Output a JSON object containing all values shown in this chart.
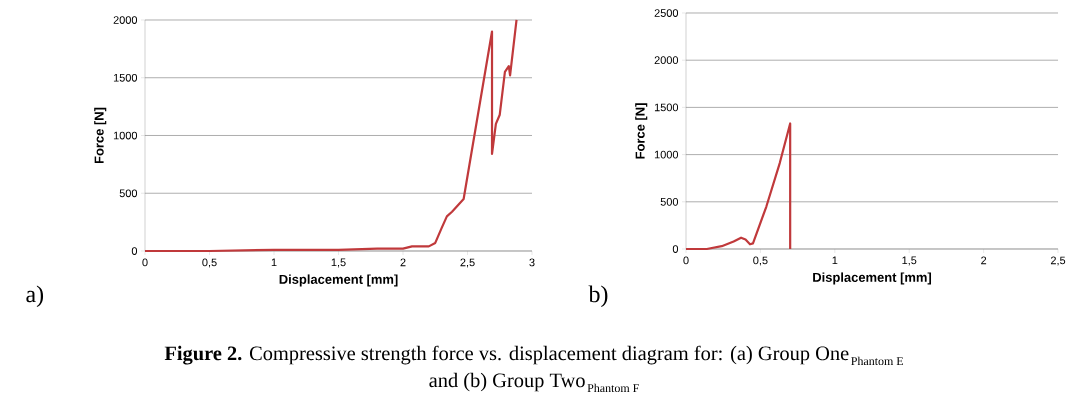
{
  "chart_data": [
    {
      "type": "line",
      "xlabel": "Displacement [mm]",
      "ylabel": "Force [N]",
      "color": "#c0393b",
      "grid": "y",
      "annotations": [
        "a)"
      ],
      "x": [
        0,
        0.5,
        1,
        1.5,
        1.8,
        2.0,
        2.07,
        2.2,
        2.25,
        2.3,
        2.34,
        2.38,
        2.47,
        2.69,
        2.69,
        2.72,
        2.75,
        2.79,
        2.82,
        2.83,
        2.88
      ],
      "values": [
        0,
        0,
        10,
        10,
        20,
        20,
        40,
        40,
        70,
        200,
        300,
        340,
        450,
        1900,
        840,
        1100,
        1180,
        1550,
        1600,
        1520,
        2000
      ],
      "xlim": [
        0,
        3
      ],
      "ylim": [
        0,
        2000
      ],
      "xticks": [
        0,
        {
          "value": 0.5,
          "label": "0,5"
        },
        1,
        {
          "value": 1.5,
          "label": "1,5"
        },
        2,
        {
          "value": 2.5,
          "label": "2,5"
        },
        3
      ],
      "yticks": [
        0,
        500,
        1000,
        1500,
        2000
      ]
    },
    {
      "type": "line",
      "xlabel": "Displacement [mm]",
      "ylabel": "Force [N]",
      "color": "#c0393b",
      "grid": "y",
      "annotations": [
        "b)",
        "**Figure 2.** Compressive strength force vs. displacement diagram for: (a) Group One",
        "Phantom E",
        "and (b) Group Two",
        "Phantom F"
      ],
      "x": [
        0,
        0.14,
        0.24,
        0.32,
        0.37,
        0.4,
        0.43,
        0.45,
        0.54,
        0.63,
        0.7,
        0.7
      ],
      "values": [
        0,
        0,
        30,
        80,
        120,
        100,
        50,
        60,
        450,
        910,
        1330,
        0
      ],
      "xlim": [
        0,
        2.5
      ],
      "ylim": [
        0,
        2500
      ],
      "xticks": [
        0,
        {
          "value": 0.5,
          "label": "0,5"
        },
        1,
        {
          "value": 1.5,
          "label": "1,5"
        },
        2,
        {
          "value": 2.5,
          "label": "2,5"
        }
      ],
      "yticks": [
        0,
        500,
        1000,
        1500,
        2000,
        2500
      ]
    }
  ]
}
